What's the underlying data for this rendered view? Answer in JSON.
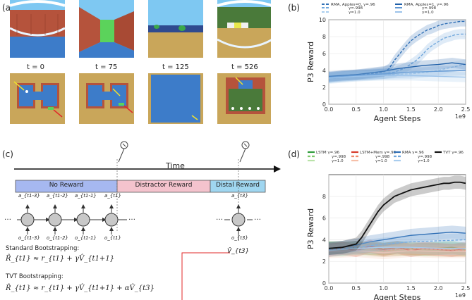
{
  "panel_labels": {
    "a": "(a)",
    "b": "(b)",
    "c": "(c)",
    "d": "(d)"
  },
  "panel_a": {
    "time_labels": [
      "t = 0",
      "t = 75",
      "t = 125",
      "t = 526"
    ],
    "colors": {
      "sky": "#7ec8f2",
      "brick": "#b5533c",
      "water": "#3d7cc9",
      "sand": "#c9a65a",
      "green": "#5bd35b"
    }
  },
  "panel_c": {
    "time_label": "Time",
    "segments": [
      "No Reward",
      "Distractor Reward",
      "Distal Reward"
    ],
    "segment_colors": [
      "#a6b8f0",
      "#f4c3cd",
      "#9fd6f0"
    ],
    "dots": "…",
    "top_labels": [
      "a_{t1-3}",
      "a_{t1-2}",
      "a_{t1-1}",
      "a_{t1}",
      "a_{t3}"
    ],
    "bottom_labels": [
      "o_{t1-3}",
      "o_{t1-2}",
      "o_{t1-1}",
      "o_{t1}",
      "o_{t3}"
    ],
    "v_label": "V̂_{t3}",
    "standard_title": "Standard Bootstrapping:",
    "standard_eq": "R̂_{t1} ≈ r_{t1} + γV̂_{t1+1}",
    "tvt_title": "TVT Bootstrapping:",
    "tvt_eq": "R̂_{t1} ≈ r_{t1} + γV̂_{t1+1} + αV̂_{t3}"
  },
  "chart_data": [
    {
      "panel": "b",
      "type": "line",
      "xlabel": "Agent Steps",
      "ylabel": "P3 Reward",
      "x_exponent_label": "1e9",
      "xlim": [
        0,
        2.5
      ],
      "ylim": [
        0,
        10
      ],
      "xticks": [
        "0.0",
        "0.5",
        "1.0",
        "1.5",
        "2.0",
        "2.5"
      ],
      "yticks": [
        "0",
        "2",
        "4",
        "6",
        "8",
        "10"
      ],
      "legend": [
        {
          "group": "RMA, Apples=0, γ=.96",
          "sub": [
            "γ=.998",
            "γ=1.0"
          ]
        },
        {
          "group": "RMA, Apples=1, γ=.96",
          "sub": [
            "γ=.998",
            "γ=1.0"
          ]
        }
      ],
      "series": [
        {
          "name": "RMA, Apples=0, γ=.96",
          "color": "#2f6fb5",
          "dash": "4 2",
          "x": [
            0,
            0.25,
            0.5,
            0.75,
            1.0,
            1.1,
            1.2,
            1.3,
            1.4,
            1.5,
            1.6,
            1.7,
            1.8,
            1.9,
            2.0,
            2.1,
            2.2,
            2.3,
            2.4,
            2.5
          ],
          "y": [
            3.2,
            3.4,
            3.5,
            3.6,
            3.8,
            4.2,
            5.2,
            6.0,
            6.8,
            7.5,
            8.0,
            8.4,
            8.8,
            9.0,
            9.3,
            9.5,
            9.6,
            9.7,
            9.8,
            9.8
          ]
        },
        {
          "name": "γ=.998",
          "color": "#6fa6dc",
          "dash": "4 2",
          "x": [
            0,
            0.25,
            0.5,
            0.75,
            1.0,
            1.2,
            1.4,
            1.6,
            1.7,
            1.8,
            1.9,
            2.0,
            2.1,
            2.2,
            2.3,
            2.4,
            2.5
          ],
          "y": [
            3.1,
            3.3,
            3.4,
            3.5,
            3.6,
            3.8,
            4.3,
            5.2,
            5.8,
            6.5,
            7.0,
            7.4,
            7.8,
            8.0,
            8.2,
            8.3,
            8.3
          ]
        },
        {
          "name": "γ=1.0",
          "color": "#a9cdee",
          "dash": "4 2",
          "x": [
            0,
            0.5,
            1.0,
            1.5,
            1.8,
            2.0,
            2.2,
            2.4,
            2.5
          ],
          "y": [
            3.0,
            3.3,
            3.5,
            3.6,
            3.8,
            4.0,
            4.3,
            4.6,
            4.7
          ]
        },
        {
          "name": "RMA, Apples=1, γ=.96",
          "color": "#1f5fa8",
          "dash": "",
          "x": [
            0,
            0.25,
            0.5,
            0.75,
            1.0,
            1.25,
            1.5,
            1.75,
            2.0,
            2.25,
            2.5
          ],
          "y": [
            3.3,
            3.4,
            3.5,
            3.7,
            3.9,
            4.2,
            4.4,
            4.6,
            4.7,
            4.9,
            4.7
          ]
        },
        {
          "name": "γ=.998",
          "color": "#5f96d2",
          "dash": "",
          "x": [
            0,
            0.5,
            1.0,
            1.5,
            2.0,
            2.5
          ],
          "y": [
            3.2,
            3.4,
            3.6,
            3.8,
            3.9,
            4.0
          ]
        },
        {
          "name": "γ=1.0",
          "color": "#9cc3ea",
          "dash": "",
          "x": [
            0,
            0.5,
            1.0,
            1.5,
            2.0,
            2.5
          ],
          "y": [
            3.1,
            3.3,
            3.4,
            3.4,
            3.3,
            3.2
          ]
        }
      ]
    },
    {
      "panel": "d",
      "type": "line",
      "xlabel": "Agent Steps",
      "ylabel": "P3 Reward",
      "x_exponent_label": "1e9",
      "xlim": [
        0,
        2.5
      ],
      "ylim": [
        0,
        10
      ],
      "xticks": [
        "0.0",
        "0.5",
        "1.0",
        "1.5",
        "2.0",
        "2.5"
      ],
      "yticks": [
        "0",
        "2",
        "4",
        "6",
        "8"
      ],
      "legend": [
        {
          "group": "LSTM γ=.96",
          "sub": [
            "γ=.998",
            "γ=1.0"
          ]
        },
        {
          "group": "LSTM+Mem γ=.96",
          "sub": [
            "γ=.998",
            "γ=1.0"
          ]
        },
        {
          "group": "RMA γ=.96",
          "sub": [
            "γ=.998",
            "γ=1.0"
          ]
        },
        {
          "group": "TVT γ=.96",
          "sub": []
        }
      ],
      "series": [
        {
          "name": "LSTM γ=.96",
          "color": "#2e9c3a",
          "dash": "",
          "x": [
            0,
            0.25,
            0.5,
            0.75,
            1.0,
            1.25,
            1.5,
            1.75,
            2.0,
            2.25,
            2.5
          ],
          "y": [
            3.2,
            3.1,
            3.3,
            3.2,
            3.1,
            3.3,
            3.2,
            3.1,
            3.2,
            3.3,
            3.1
          ]
        },
        {
          "name": "γ=.998",
          "color": "#7cc96b",
          "dash": "4 2",
          "x": [
            0,
            0.5,
            1.0,
            1.5,
            2.0,
            2.5
          ],
          "y": [
            3.3,
            3.2,
            3.2,
            3.1,
            3.2,
            3.1
          ]
        },
        {
          "name": "γ=1.0",
          "color": "#b9e2a8",
          "dash": "",
          "x": [
            0,
            0.5,
            1.0,
            1.5,
            2.0,
            2.5
          ],
          "y": [
            3.0,
            3.1,
            3.0,
            3.1,
            3.0,
            3.0
          ]
        },
        {
          "name": "LSTM+Mem γ=.96",
          "color": "#d63a2a",
          "dash": "",
          "x": [
            0,
            0.25,
            0.5,
            0.75,
            1.0,
            1.25,
            1.5,
            1.75,
            2.0,
            2.25,
            2.5
          ],
          "y": [
            3.0,
            3.2,
            3.0,
            3.4,
            3.1,
            3.3,
            3.0,
            3.2,
            3.1,
            3.0,
            3.2
          ]
        },
        {
          "name": "γ=.998",
          "color": "#f08a6b",
          "dash": "4 2",
          "x": [
            0,
            0.5,
            1.0,
            1.5,
            2.0,
            2.5
          ],
          "y": [
            3.1,
            3.3,
            3.0,
            3.2,
            3.1,
            3.0
          ]
        },
        {
          "name": "γ=1.0",
          "color": "#f6bfa8",
          "dash": "",
          "x": [
            0,
            0.5,
            1.0,
            1.5,
            2.0,
            2.5
          ],
          "y": [
            2.9,
            3.0,
            2.8,
            3.0,
            2.9,
            2.9
          ]
        },
        {
          "name": "RMA γ=.96",
          "color": "#2f6fb5",
          "dash": "",
          "x": [
            0,
            0.25,
            0.5,
            0.75,
            1.0,
            1.25,
            1.5,
            1.75,
            2.0,
            2.25,
            2.5
          ],
          "y": [
            3.2,
            3.3,
            3.5,
            3.8,
            4.0,
            4.2,
            4.4,
            4.5,
            4.6,
            4.7,
            4.6
          ]
        },
        {
          "name": "γ=.998",
          "color": "#6fa6dc",
          "dash": "4 2",
          "x": [
            0,
            0.5,
            1.0,
            1.5,
            2.0,
            2.5
          ],
          "y": [
            3.1,
            3.3,
            3.6,
            3.8,
            3.9,
            4.0
          ]
        },
        {
          "name": "γ=1.0",
          "color": "#a9cdee",
          "dash": "",
          "x": [
            0,
            0.5,
            1.0,
            1.5,
            2.0,
            2.5
          ],
          "y": [
            3.0,
            3.2,
            3.3,
            3.3,
            3.2,
            3.2
          ]
        },
        {
          "name": "TVT γ=.96",
          "color": "#111111",
          "dash": "",
          "x": [
            0,
            0.25,
            0.5,
            0.6,
            0.7,
            0.8,
            0.9,
            1.0,
            1.1,
            1.2,
            1.3,
            1.4,
            1.5,
            1.6,
            1.7,
            1.8,
            1.9,
            2.0,
            2.1,
            2.2,
            2.3,
            2.4,
            2.5
          ],
          "y": [
            3.2,
            3.3,
            3.6,
            4.2,
            5.0,
            5.8,
            6.6,
            7.2,
            7.6,
            8.0,
            8.2,
            8.4,
            8.6,
            8.7,
            8.8,
            8.9,
            9.0,
            9.1,
            9.2,
            9.2,
            9.3,
            9.3,
            9.2
          ]
        }
      ]
    }
  ]
}
